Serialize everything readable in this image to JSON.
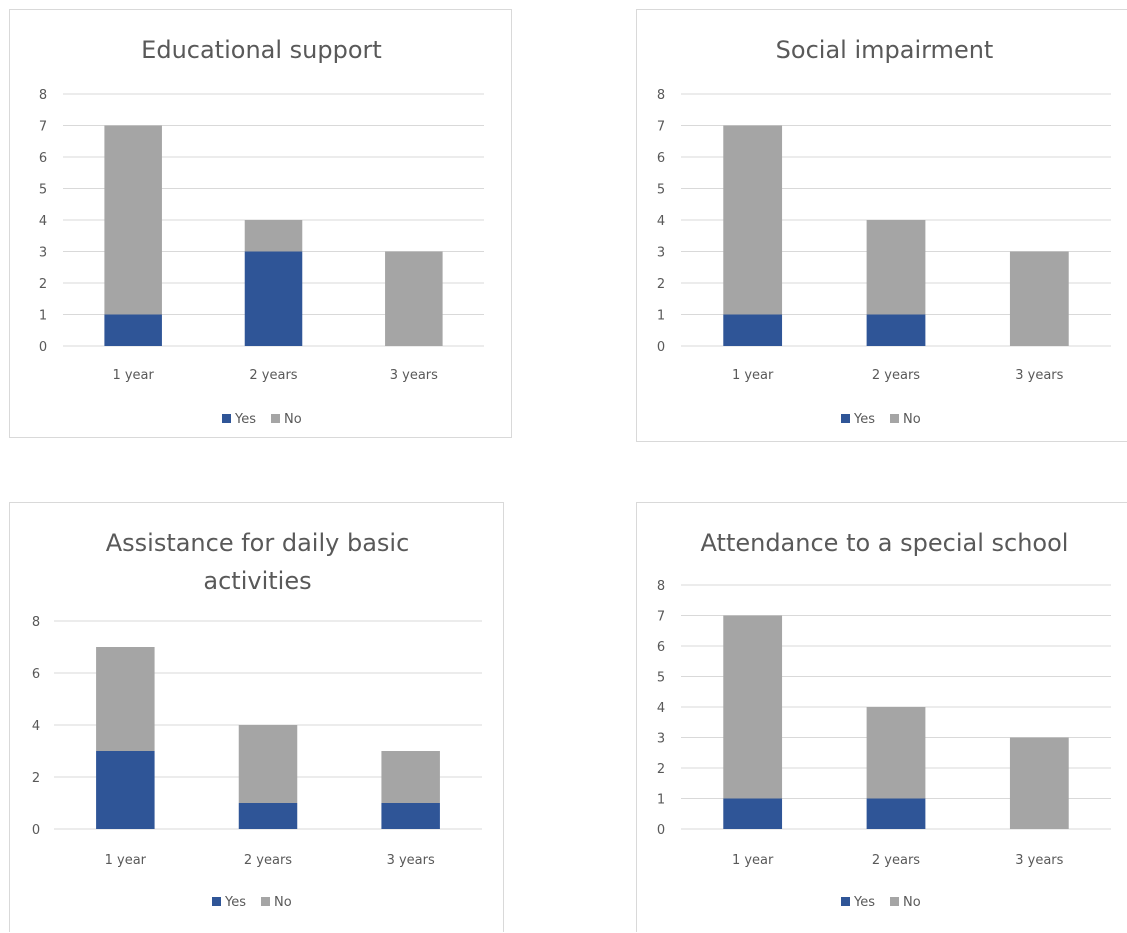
{
  "colors": {
    "yes": "#2f5597",
    "no": "#a5a5a5",
    "grid": "#d9d9d9",
    "text": "#595959"
  },
  "chart_data": [
    {
      "type": "bar",
      "stacked": true,
      "title": [
        "Educational support"
      ],
      "categories": [
        "1 year",
        "2 years",
        "3 years"
      ],
      "series": [
        {
          "name": "Yes",
          "values": [
            1,
            3,
            0
          ]
        },
        {
          "name": "No",
          "values": [
            6,
            1,
            3
          ]
        }
      ],
      "ylim": [
        0,
        8
      ],
      "yticks": [
        "0",
        "1",
        "2",
        "3",
        "4",
        "5",
        "6",
        "7",
        "8"
      ],
      "grid": true,
      "legend": "bottom"
    },
    {
      "type": "bar",
      "stacked": true,
      "title": [
        "Social impairment"
      ],
      "categories": [
        "1 year",
        "2 years",
        "3 years"
      ],
      "series": [
        {
          "name": "Yes",
          "values": [
            1,
            1,
            0
          ]
        },
        {
          "name": "No",
          "values": [
            6,
            3,
            3
          ]
        }
      ],
      "ylim": [
        0,
        8
      ],
      "yticks": [
        "0",
        "1",
        "2",
        "3",
        "4",
        "5",
        "6",
        "7",
        "8"
      ],
      "grid": true,
      "legend": "bottom"
    },
    {
      "type": "bar",
      "stacked": true,
      "title": [
        "Assistance for daily basic",
        "activities"
      ],
      "categories": [
        "1 year",
        "2 years",
        "3 years"
      ],
      "series": [
        {
          "name": "Yes",
          "values": [
            3,
            1,
            1
          ]
        },
        {
          "name": "No",
          "values": [
            4,
            3,
            2
          ]
        }
      ],
      "ylim": [
        0,
        8
      ],
      "yticks": [
        "0",
        "2",
        "4",
        "6",
        "8"
      ],
      "grid": true,
      "legend": "bottom"
    },
    {
      "type": "bar",
      "stacked": true,
      "title": [
        "Attendance to a special school"
      ],
      "categories": [
        "1 year",
        "2 years",
        "3 years"
      ],
      "series": [
        {
          "name": "Yes",
          "values": [
            1,
            1,
            0
          ]
        },
        {
          "name": "No",
          "values": [
            6,
            3,
            3
          ]
        }
      ],
      "ylim": [
        0,
        8
      ],
      "yticks": [
        "0",
        "1",
        "2",
        "3",
        "4",
        "5",
        "6",
        "7",
        "8"
      ],
      "grid": true,
      "legend": "bottom"
    }
  ]
}
